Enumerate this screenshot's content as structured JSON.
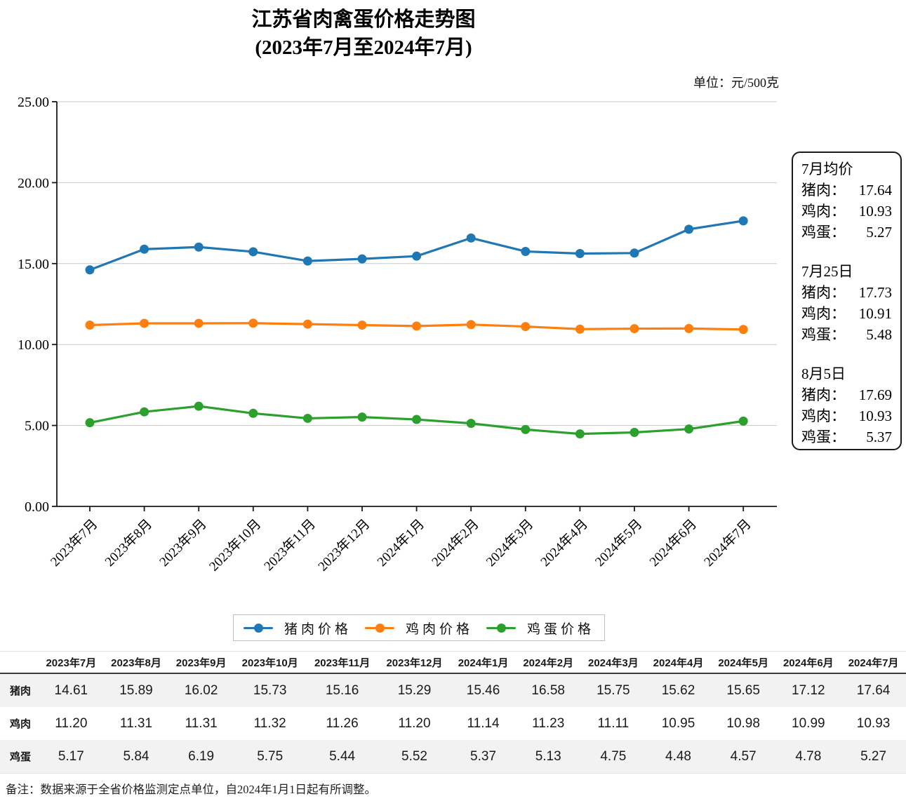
{
  "title": {
    "line1": "江苏省肉禽蛋价格走势图",
    "line2": "(2023年7月至2024年7月)"
  },
  "unit_label": "单位：元/500克",
  "chart_data": {
    "type": "line",
    "title": "江苏省肉禽蛋价格走势图(2023年7月至2024年7月)",
    "unit": "元/500克",
    "categories": [
      "2023年7月",
      "2023年8月",
      "2023年9月",
      "2023年10月",
      "2023年11月",
      "2023年12月",
      "2024年1月",
      "2024年2月",
      "2024年3月",
      "2024年4月",
      "2024年5月",
      "2024年6月",
      "2024年7月"
    ],
    "series": [
      {
        "name": "猪肉价格",
        "color": "#1f77b4",
        "values": [
          14.61,
          15.89,
          16.02,
          15.73,
          15.16,
          15.29,
          15.46,
          16.58,
          15.75,
          15.62,
          15.65,
          17.12,
          17.64
        ]
      },
      {
        "name": "鸡肉价格",
        "color": "#ff7f0e",
        "values": [
          11.2,
          11.31,
          11.31,
          11.32,
          11.26,
          11.2,
          11.14,
          11.23,
          11.11,
          10.95,
          10.98,
          10.99,
          10.93
        ]
      },
      {
        "name": "鸡蛋价格",
        "color": "#2ca02c",
        "values": [
          5.17,
          5.84,
          6.19,
          5.75,
          5.44,
          5.52,
          5.37,
          5.13,
          4.75,
          4.48,
          4.57,
          4.78,
          5.27
        ]
      }
    ],
    "ylim": [
      0,
      25
    ],
    "y_ticks": [
      "0.00",
      "5.00",
      "10.00",
      "15.00",
      "20.00",
      "25.00"
    ],
    "grid": "horizontal",
    "legend_position": "bottom"
  },
  "info_box": {
    "sections": [
      {
        "title": "7月均价",
        "rows": [
          {
            "label": "猪肉：",
            "value": "17.64"
          },
          {
            "label": "鸡肉：",
            "value": "10.93"
          },
          {
            "label": "鸡蛋：",
            "value": "5.27"
          }
        ]
      },
      {
        "title": "7月25日",
        "rows": [
          {
            "label": "猪肉：",
            "value": "17.73"
          },
          {
            "label": "鸡肉：",
            "value": "10.91"
          },
          {
            "label": "鸡蛋：",
            "value": "5.48"
          }
        ]
      },
      {
        "title": "8月5日",
        "rows": [
          {
            "label": "猪肉：",
            "value": "17.69"
          },
          {
            "label": "鸡肉：",
            "value": "10.93"
          },
          {
            "label": "鸡蛋：",
            "value": "5.37"
          }
        ]
      }
    ]
  },
  "legend": {
    "items": [
      {
        "label": "猪肉价格",
        "color": "#1f77b4"
      },
      {
        "label": "鸡肉价格",
        "color": "#ff7f0e"
      },
      {
        "label": "鸡蛋价格",
        "color": "#2ca02c"
      }
    ]
  },
  "table": {
    "corner_label": "",
    "columns": [
      "2023年7月",
      "2023年8月",
      "2023年9月",
      "2023年10月",
      "2023年11月",
      "2023年12月",
      "2024年1月",
      "2024年2月",
      "2024年3月",
      "2024年4月",
      "2024年5月",
      "2024年6月",
      "2024年7月"
    ],
    "rows": [
      {
        "label": "猪肉",
        "values": [
          "14.61",
          "15.89",
          "16.02",
          "15.73",
          "15.16",
          "15.29",
          "15.46",
          "16.58",
          "15.75",
          "15.62",
          "15.65",
          "17.12",
          "17.64"
        ]
      },
      {
        "label": "鸡肉",
        "values": [
          "11.20",
          "11.31",
          "11.31",
          "11.32",
          "11.26",
          "11.20",
          "11.14",
          "11.23",
          "11.11",
          "10.95",
          "10.98",
          "10.99",
          "10.93"
        ]
      },
      {
        "label": "鸡蛋",
        "values": [
          "5.17",
          "5.84",
          "6.19",
          "5.75",
          "5.44",
          "5.52",
          "5.37",
          "5.13",
          "4.75",
          "4.48",
          "4.57",
          "4.78",
          "5.27"
        ]
      }
    ]
  },
  "note": "备注：数据来源于全省价格监测定点单位，自2024年1月1日起有所调整。"
}
